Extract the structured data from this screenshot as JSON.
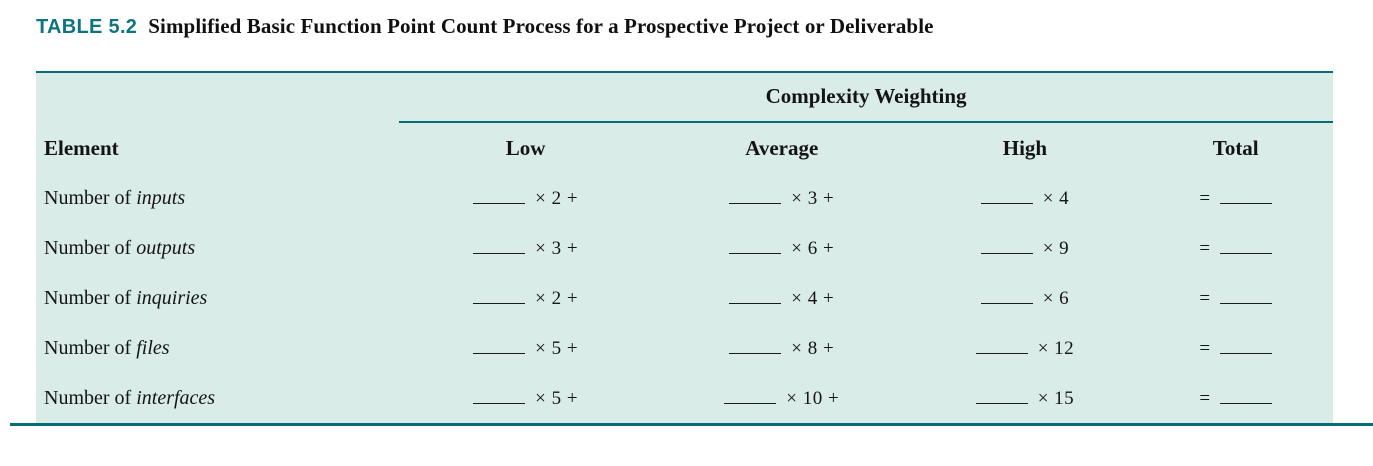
{
  "title": {
    "label": "TABLE 5.2",
    "text": "Simplified Basic Function Point Count Process for a Prospective Project or Deliverable"
  },
  "table": {
    "group_header": "Complexity Weighting",
    "columns": {
      "element": "Element",
      "low": "Low",
      "average": "Average",
      "high": "High",
      "total": "Total"
    },
    "total_prefix": "=",
    "rows": [
      {
        "prefix": "Number of",
        "term": "inputs",
        "low": "× 2 +",
        "average": "× 3 +",
        "high": "× 4"
      },
      {
        "prefix": "Number of",
        "term": "outputs",
        "low": "× 3 +",
        "average": "× 6 +",
        "high": "× 9"
      },
      {
        "prefix": "Number of",
        "term": "inquiries",
        "low": "× 2 +",
        "average": "× 4 +",
        "high": "× 6"
      },
      {
        "prefix": "Number of",
        "term": "files",
        "low": "× 5 +",
        "average": "× 8 +",
        "high": "× 12"
      },
      {
        "prefix": "Number of",
        "term": "interfaces",
        "low": "× 5 +",
        "average": "× 10 +",
        "high": "× 15"
      }
    ]
  },
  "colors": {
    "accent_teal": "#0E7480",
    "rule_teal": "#0A6B7D",
    "table_background": "#D9ECE8",
    "text": "#141414"
  }
}
